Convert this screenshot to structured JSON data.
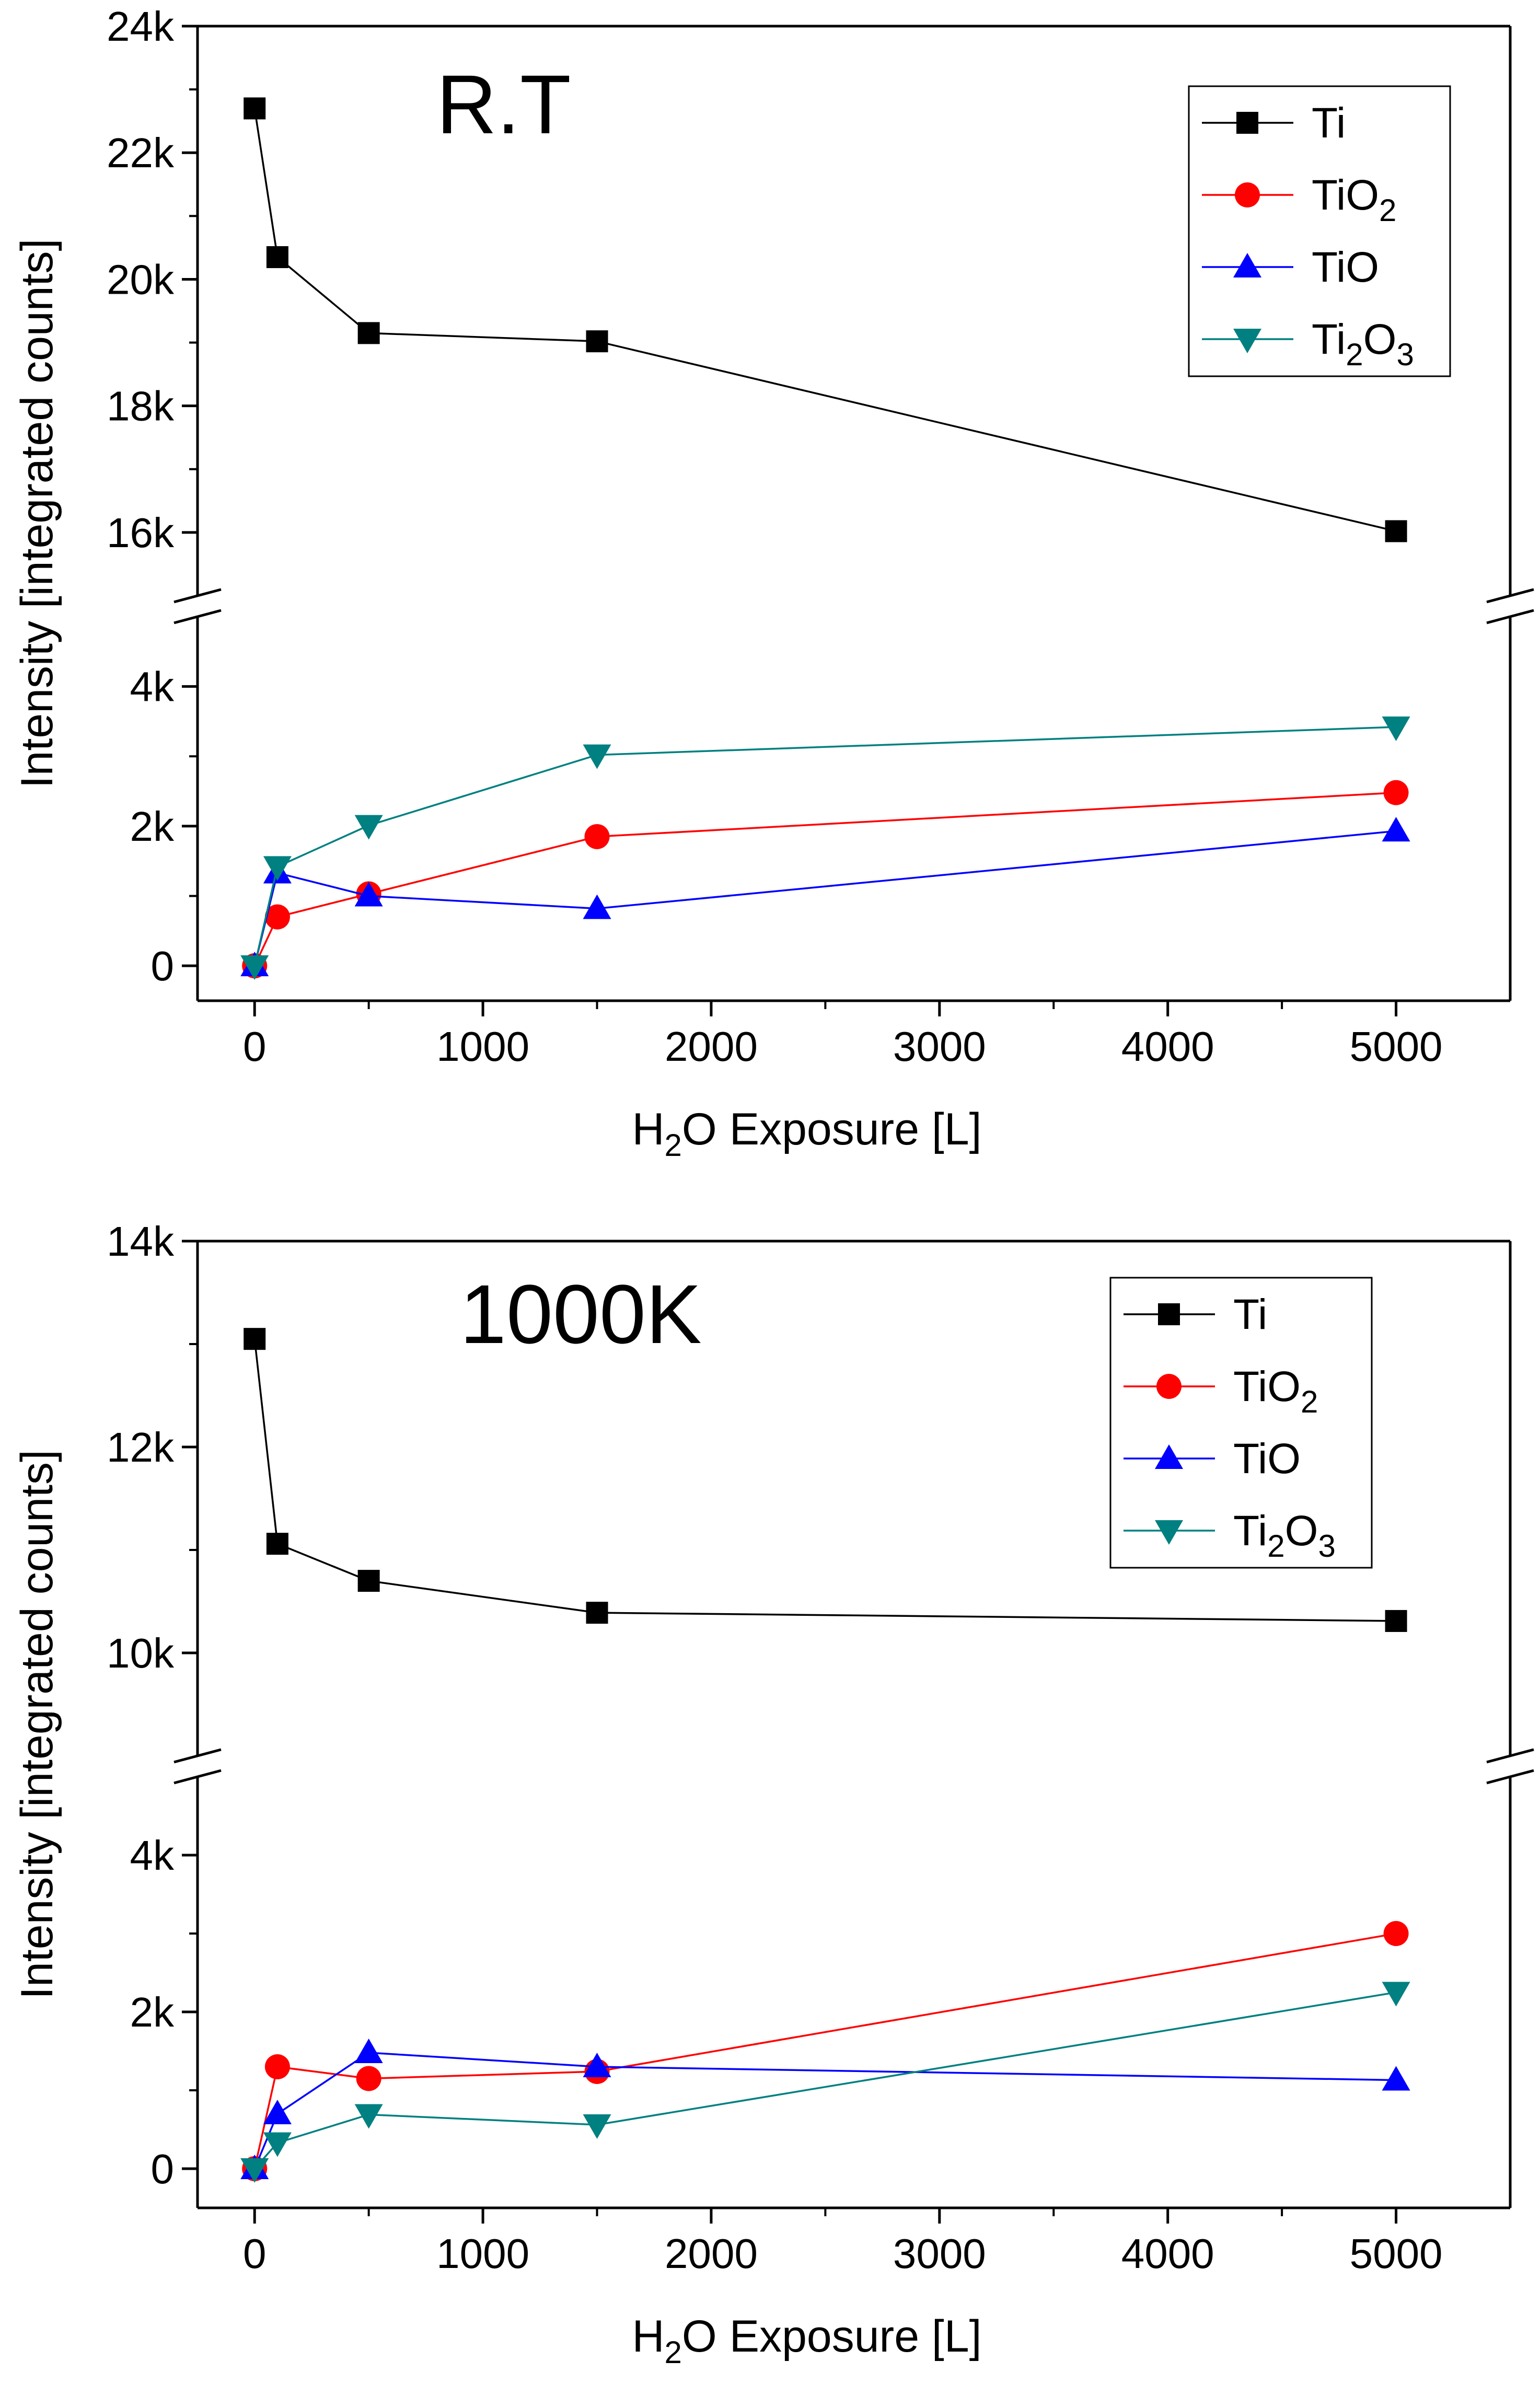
{
  "chart_data": [
    {
      "type": "line",
      "panel_label": "R.T",
      "xlabel": {
        "pre": "H",
        "sub": "2",
        "post": "O Exposure [L]"
      },
      "ylabel": "Intensity [integrated counts]",
      "x": [
        0,
        100,
        500,
        1500,
        5000
      ],
      "xlim": [
        -250,
        5500
      ],
      "x_ticks": [
        0,
        1000,
        2000,
        3000,
        4000,
        5000
      ],
      "x_tick_labels": [
        "0",
        "1000",
        "2000",
        "3000",
        "4000",
        "5000"
      ],
      "y_axis_break": true,
      "upper_ylim": [
        15000,
        24000
      ],
      "upper_y_ticks": [
        16000,
        18000,
        20000,
        22000,
        24000
      ],
      "upper_y_tick_labels": [
        "16k",
        "18k",
        "20k",
        "22k",
        "24k"
      ],
      "lower_ylim": [
        -500,
        5000
      ],
      "lower_y_ticks": [
        0,
        2000,
        4000
      ],
      "lower_y_tick_labels": [
        "0",
        "2k",
        "4k"
      ],
      "legend_position": "top-right",
      "series": [
        {
          "name": "Ti",
          "label_pre": "Ti",
          "label_sub": "",
          "label_post": "",
          "color": "#000000",
          "marker": "square",
          "values": [
            22700,
            20350,
            19150,
            19020,
            16020
          ]
        },
        {
          "name": "TiO2",
          "label_pre": "TiO",
          "label_sub": "2",
          "label_post": "",
          "color": "#ff0000",
          "marker": "circle",
          "values": [
            0,
            700,
            1030,
            1850,
            2480
          ]
        },
        {
          "name": "TiO",
          "label_pre": "TiO",
          "label_sub": "",
          "label_post": "",
          "color": "#0000ff",
          "marker": "triangle-up",
          "values": [
            0,
            1330,
            1000,
            820,
            1930
          ]
        },
        {
          "name": "Ti2O3",
          "label_pre": "Ti",
          "label_sub": "2",
          "label_post": "O",
          "label_sub2": "3",
          "color": "#008080",
          "marker": "triangle-down",
          "values": [
            0,
            1420,
            2010,
            3020,
            3420
          ]
        }
      ]
    },
    {
      "type": "line",
      "panel_label": "1000K",
      "xlabel": {
        "pre": "H",
        "sub": "2",
        "post": "O Exposure [L]"
      },
      "ylabel": "Intensity [integrated counts]",
      "x": [
        0,
        100,
        500,
        1500,
        5000
      ],
      "xlim": [
        -250,
        5500
      ],
      "x_ticks": [
        0,
        1000,
        2000,
        3000,
        4000,
        5000
      ],
      "x_tick_labels": [
        "0",
        "1000",
        "2000",
        "3000",
        "4000",
        "5000"
      ],
      "y_axis_break": true,
      "upper_ylim": [
        9000,
        14000
      ],
      "upper_y_ticks": [
        10000,
        12000,
        14000
      ],
      "upper_y_tick_labels": [
        "10k",
        "12k",
        "14k"
      ],
      "lower_ylim": [
        -500,
        5000
      ],
      "lower_y_ticks": [
        0,
        2000,
        4000
      ],
      "lower_y_tick_labels": [
        "0",
        "2k",
        "4k"
      ],
      "legend_position": "top-right",
      "series": [
        {
          "name": "Ti",
          "label_pre": "Ti",
          "label_sub": "",
          "label_post": "",
          "color": "#000000",
          "marker": "square",
          "values": [
            13050,
            11060,
            10700,
            10390,
            10310
          ]
        },
        {
          "name": "TiO2",
          "label_pre": "TiO",
          "label_sub": "2",
          "label_post": "",
          "color": "#ff0000",
          "marker": "circle",
          "values": [
            0,
            1300,
            1150,
            1240,
            3000
          ]
        },
        {
          "name": "TiO",
          "label_pre": "TiO",
          "label_sub": "",
          "label_post": "",
          "color": "#0000ff",
          "marker": "triangle-up",
          "values": [
            0,
            700,
            1480,
            1300,
            1130
          ]
        },
        {
          "name": "Ti2O3",
          "label_pre": "Ti",
          "label_sub": "2",
          "label_post": "O",
          "label_sub2": "3",
          "color": "#008080",
          "marker": "triangle-down",
          "values": [
            0,
            330,
            690,
            560,
            2250
          ]
        }
      ]
    }
  ]
}
